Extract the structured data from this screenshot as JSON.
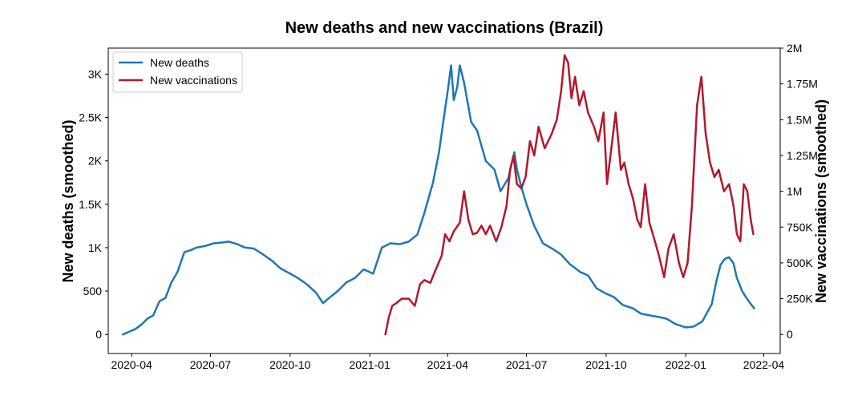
{
  "chart_data": {
    "type": "line",
    "title": "New deaths and new vaccinations (Brazil)",
    "x_ticks": [
      "2020-04",
      "2020-07",
      "2020-10",
      "2021-01",
      "2021-04",
      "2021-07",
      "2021-10",
      "2022-01",
      "2022-04"
    ],
    "xlim": [
      "2020-03-05",
      "2022-04-20"
    ],
    "left_axis": {
      "label": "New deaths (smoothed)",
      "ylim": [
        -220,
        3300
      ],
      "ticks": [
        0,
        500,
        1000,
        1500,
        2000,
        2500,
        3000
      ],
      "tick_labels": [
        "0",
        "500",
        "1K",
        "1.5K",
        "2K",
        "2.5K",
        "3K"
      ]
    },
    "right_axis": {
      "label": "New vaccinations (smoothed)",
      "ylim": [
        -133000,
        2000000
      ],
      "ticks": [
        0,
        250000,
        500000,
        750000,
        1000000,
        1250000,
        1500000,
        1750000,
        2000000
      ],
      "tick_labels": [
        "0",
        "250K",
        "500K",
        "750K",
        "1M",
        "1.25M",
        "1.5M",
        "1.75M",
        "2M"
      ]
    },
    "legend": {
      "position": "top-left"
    },
    "grid": false,
    "series": [
      {
        "name": "New deaths",
        "axis": "left",
        "color": "#1f77b4",
        "x": [
          "2020-03-22",
          "2020-03-29",
          "2020-04-05",
          "2020-04-12",
          "2020-04-19",
          "2020-04-26",
          "2020-05-03",
          "2020-05-10",
          "2020-05-17",
          "2020-05-24",
          "2020-06-01",
          "2020-06-08",
          "2020-06-15",
          "2020-06-25",
          "2020-07-05",
          "2020-07-15",
          "2020-07-22",
          "2020-08-01",
          "2020-08-10",
          "2020-08-20",
          "2020-08-31",
          "2020-09-10",
          "2020-09-20",
          "2020-10-01",
          "2020-10-10",
          "2020-10-20",
          "2020-10-31",
          "2020-11-08",
          "2020-11-15",
          "2020-11-25",
          "2020-12-05",
          "2020-12-15",
          "2020-12-25",
          "2021-01-05",
          "2021-01-15",
          "2021-01-25",
          "2021-02-05",
          "2021-02-15",
          "2021-02-25",
          "2021-03-05",
          "2021-03-15",
          "2021-03-22",
          "2021-03-29",
          "2021-04-01",
          "2021-04-05",
          "2021-04-08",
          "2021-04-12",
          "2021-04-15",
          "2021-04-20",
          "2021-04-28",
          "2021-05-05",
          "2021-05-15",
          "2021-05-25",
          "2021-06-01",
          "2021-06-10",
          "2021-06-17",
          "2021-06-20",
          "2021-06-25",
          "2021-07-01",
          "2021-07-10",
          "2021-07-20",
          "2021-08-01",
          "2021-08-10",
          "2021-08-20",
          "2021-09-01",
          "2021-09-10",
          "2021-09-20",
          "2021-10-01",
          "2021-10-10",
          "2021-10-20",
          "2021-11-01",
          "2021-11-10",
          "2021-11-20",
          "2021-12-01",
          "2021-12-10",
          "2021-12-20",
          "2022-01-01",
          "2022-01-10",
          "2022-01-20",
          "2022-01-31",
          "2022-02-05",
          "2022-02-10",
          "2022-02-15",
          "2022-02-20",
          "2022-02-25",
          "2022-03-01",
          "2022-03-07",
          "2022-03-12",
          "2022-03-17",
          "2022-03-21"
        ],
        "values": [
          0,
          30,
          60,
          110,
          180,
          220,
          380,
          420,
          600,
          720,
          950,
          970,
          1000,
          1020,
          1050,
          1060,
          1070,
          1040,
          1000,
          990,
          920,
          850,
          760,
          700,
          650,
          580,
          480,
          360,
          420,
          500,
          600,
          650,
          750,
          700,
          1000,
          1050,
          1040,
          1070,
          1150,
          1400,
          1750,
          2100,
          2600,
          2800,
          3100,
          2700,
          2850,
          3100,
          2900,
          2450,
          2350,
          2000,
          1900,
          1650,
          1800,
          2100,
          1900,
          1700,
          1500,
          1250,
          1050,
          980,
          920,
          810,
          720,
          680,
          530,
          470,
          430,
          340,
          300,
          240,
          220,
          200,
          180,
          120,
          80,
          90,
          150,
          350,
          600,
          800,
          870,
          890,
          820,
          650,
          500,
          420,
          350,
          300
        ]
      },
      {
        "name": "New vaccinations",
        "axis": "right",
        "color": "#b2182b",
        "x": [
          "2021-01-19",
          "2021-01-23",
          "2021-01-27",
          "2021-02-01",
          "2021-02-07",
          "2021-02-15",
          "2021-02-22",
          "2021-02-28",
          "2021-03-05",
          "2021-03-12",
          "2021-03-18",
          "2021-03-25",
          "2021-03-29",
          "2021-04-03",
          "2021-04-08",
          "2021-04-15",
          "2021-04-20",
          "2021-04-25",
          "2021-04-30",
          "2021-05-05",
          "2021-05-10",
          "2021-05-15",
          "2021-05-20",
          "2021-05-27",
          "2021-06-02",
          "2021-06-08",
          "2021-06-12",
          "2021-06-16",
          "2021-06-20",
          "2021-06-25",
          "2021-06-30",
          "2021-07-05",
          "2021-07-10",
          "2021-07-15",
          "2021-07-22",
          "2021-07-30",
          "2021-08-05",
          "2021-08-10",
          "2021-08-14",
          "2021-08-18",
          "2021-08-22",
          "2021-08-26",
          "2021-08-31",
          "2021-09-05",
          "2021-09-10",
          "2021-09-17",
          "2021-09-22",
          "2021-09-28",
          "2021-10-02",
          "2021-10-07",
          "2021-10-12",
          "2021-10-18",
          "2021-10-22",
          "2021-10-27",
          "2021-11-01",
          "2021-11-06",
          "2021-11-10",
          "2021-11-15",
          "2021-11-20",
          "2021-11-25",
          "2021-12-01",
          "2021-12-07",
          "2021-12-12",
          "2021-12-18",
          "2021-12-24",
          "2021-12-29",
          "2022-01-03",
          "2022-01-08",
          "2022-01-14",
          "2022-01-19",
          "2022-01-24",
          "2022-01-29",
          "2022-02-03",
          "2022-02-08",
          "2022-02-14",
          "2022-02-20",
          "2022-02-25",
          "2022-03-01",
          "2022-03-05",
          "2022-03-09",
          "2022-03-13",
          "2022-03-17",
          "2022-03-20"
        ],
        "values": [
          0,
          120000,
          200000,
          220000,
          250000,
          250000,
          200000,
          350000,
          380000,
          360000,
          450000,
          550000,
          700000,
          650000,
          720000,
          780000,
          1000000,
          800000,
          700000,
          710000,
          760000,
          700000,
          760000,
          650000,
          750000,
          900000,
          1150000,
          1250000,
          1050000,
          1020000,
          1100000,
          1350000,
          1250000,
          1450000,
          1300000,
          1400000,
          1500000,
          1700000,
          1950000,
          1900000,
          1650000,
          1800000,
          1600000,
          1700000,
          1550000,
          1450000,
          1350000,
          1550000,
          1050000,
          1300000,
          1550000,
          1150000,
          1200000,
          1050000,
          950000,
          800000,
          750000,
          1050000,
          780000,
          680000,
          550000,
          400000,
          600000,
          700000,
          500000,
          400000,
          500000,
          900000,
          1600000,
          1800000,
          1400000,
          1200000,
          1100000,
          1150000,
          1000000,
          1050000,
          900000,
          700000,
          650000,
          1050000,
          1000000,
          800000,
          700000
        ]
      }
    ]
  }
}
